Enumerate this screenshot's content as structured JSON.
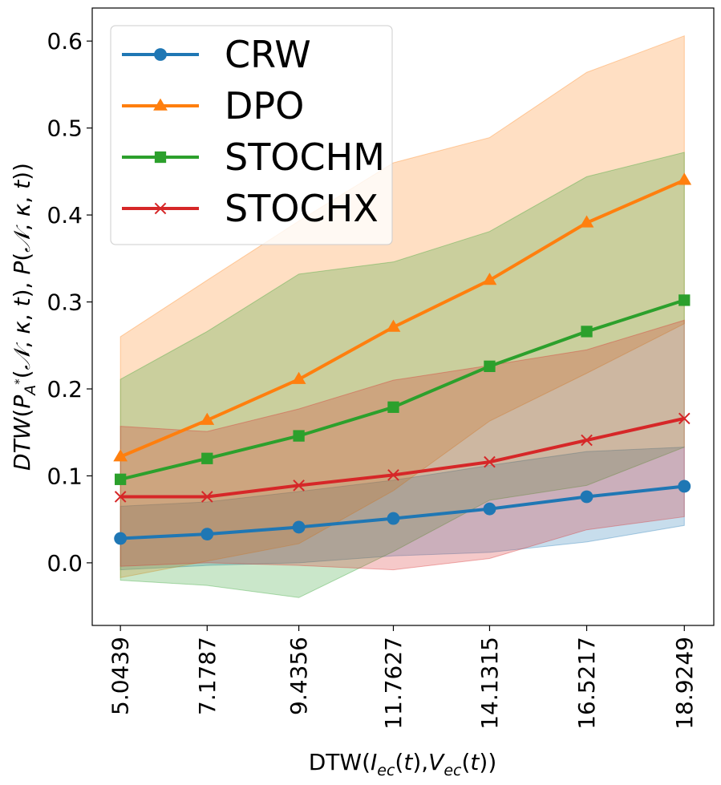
{
  "chart_data": {
    "type": "line",
    "title": "",
    "xlabel": "DTW(I_ec(t),V_ec(t))",
    "ylabel": "DTW(P_A*(N,κ,t),P(N,κ,t))",
    "x_ticks": [
      "5.0439",
      "7.1787",
      "9.4356",
      "11.7627",
      "14.1315",
      "16.5217",
      "18.9249"
    ],
    "x": [
      5.0439,
      7.1787,
      9.4356,
      11.7627,
      14.1315,
      16.5217,
      18.9249
    ],
    "xlim": [
      4.35,
      19.65
    ],
    "ylim": [
      -0.072,
      0.638
    ],
    "y_ticks": [
      0.0,
      0.1,
      0.2,
      0.3,
      0.4,
      0.5,
      0.6
    ],
    "y_tick_labels": [
      "0.0",
      "0.1",
      "0.2",
      "0.3",
      "0.4",
      "0.5",
      "0.6"
    ],
    "grid": false,
    "legend_position": "top-left",
    "series": [
      {
        "name": "CRW",
        "color": "#1f77b4",
        "marker": "circle",
        "values": [
          0.028,
          0.033,
          0.041,
          0.051,
          0.062,
          0.076,
          0.088
        ],
        "upper": [
          0.065,
          0.07,
          0.082,
          0.095,
          0.112,
          0.128,
          0.133
        ],
        "lower": [
          -0.008,
          -0.003,
          0.0,
          0.008,
          0.012,
          0.024,
          0.043
        ]
      },
      {
        "name": "DPO",
        "color": "#ff7f0e",
        "marker": "triangle",
        "values": [
          0.122,
          0.164,
          0.211,
          0.271,
          0.325,
          0.391,
          0.44
        ],
        "upper": [
          0.26,
          0.325,
          0.393,
          0.46,
          0.489,
          0.564,
          0.606
        ],
        "lower": [
          -0.017,
          0.002,
          0.022,
          0.083,
          0.163,
          0.218,
          0.275
        ]
      },
      {
        "name": "STOCHM",
        "color": "#2ca02c",
        "marker": "square",
        "values": [
          0.096,
          0.12,
          0.146,
          0.179,
          0.226,
          0.266,
          0.302
        ],
        "upper": [
          0.211,
          0.266,
          0.332,
          0.346,
          0.381,
          0.444,
          0.472
        ],
        "lower": [
          -0.02,
          -0.026,
          -0.04,
          0.013,
          0.072,
          0.089,
          0.133
        ]
      },
      {
        "name": "STOCHX",
        "color": "#d62728",
        "marker": "x",
        "values": [
          0.076,
          0.076,
          0.089,
          0.101,
          0.116,
          0.141,
          0.166
        ],
        "upper": [
          0.157,
          0.151,
          0.177,
          0.21,
          0.227,
          0.245,
          0.279
        ],
        "lower": [
          -0.004,
          0.0,
          -0.003,
          -0.008,
          0.005,
          0.038,
          0.053
        ]
      }
    ]
  }
}
